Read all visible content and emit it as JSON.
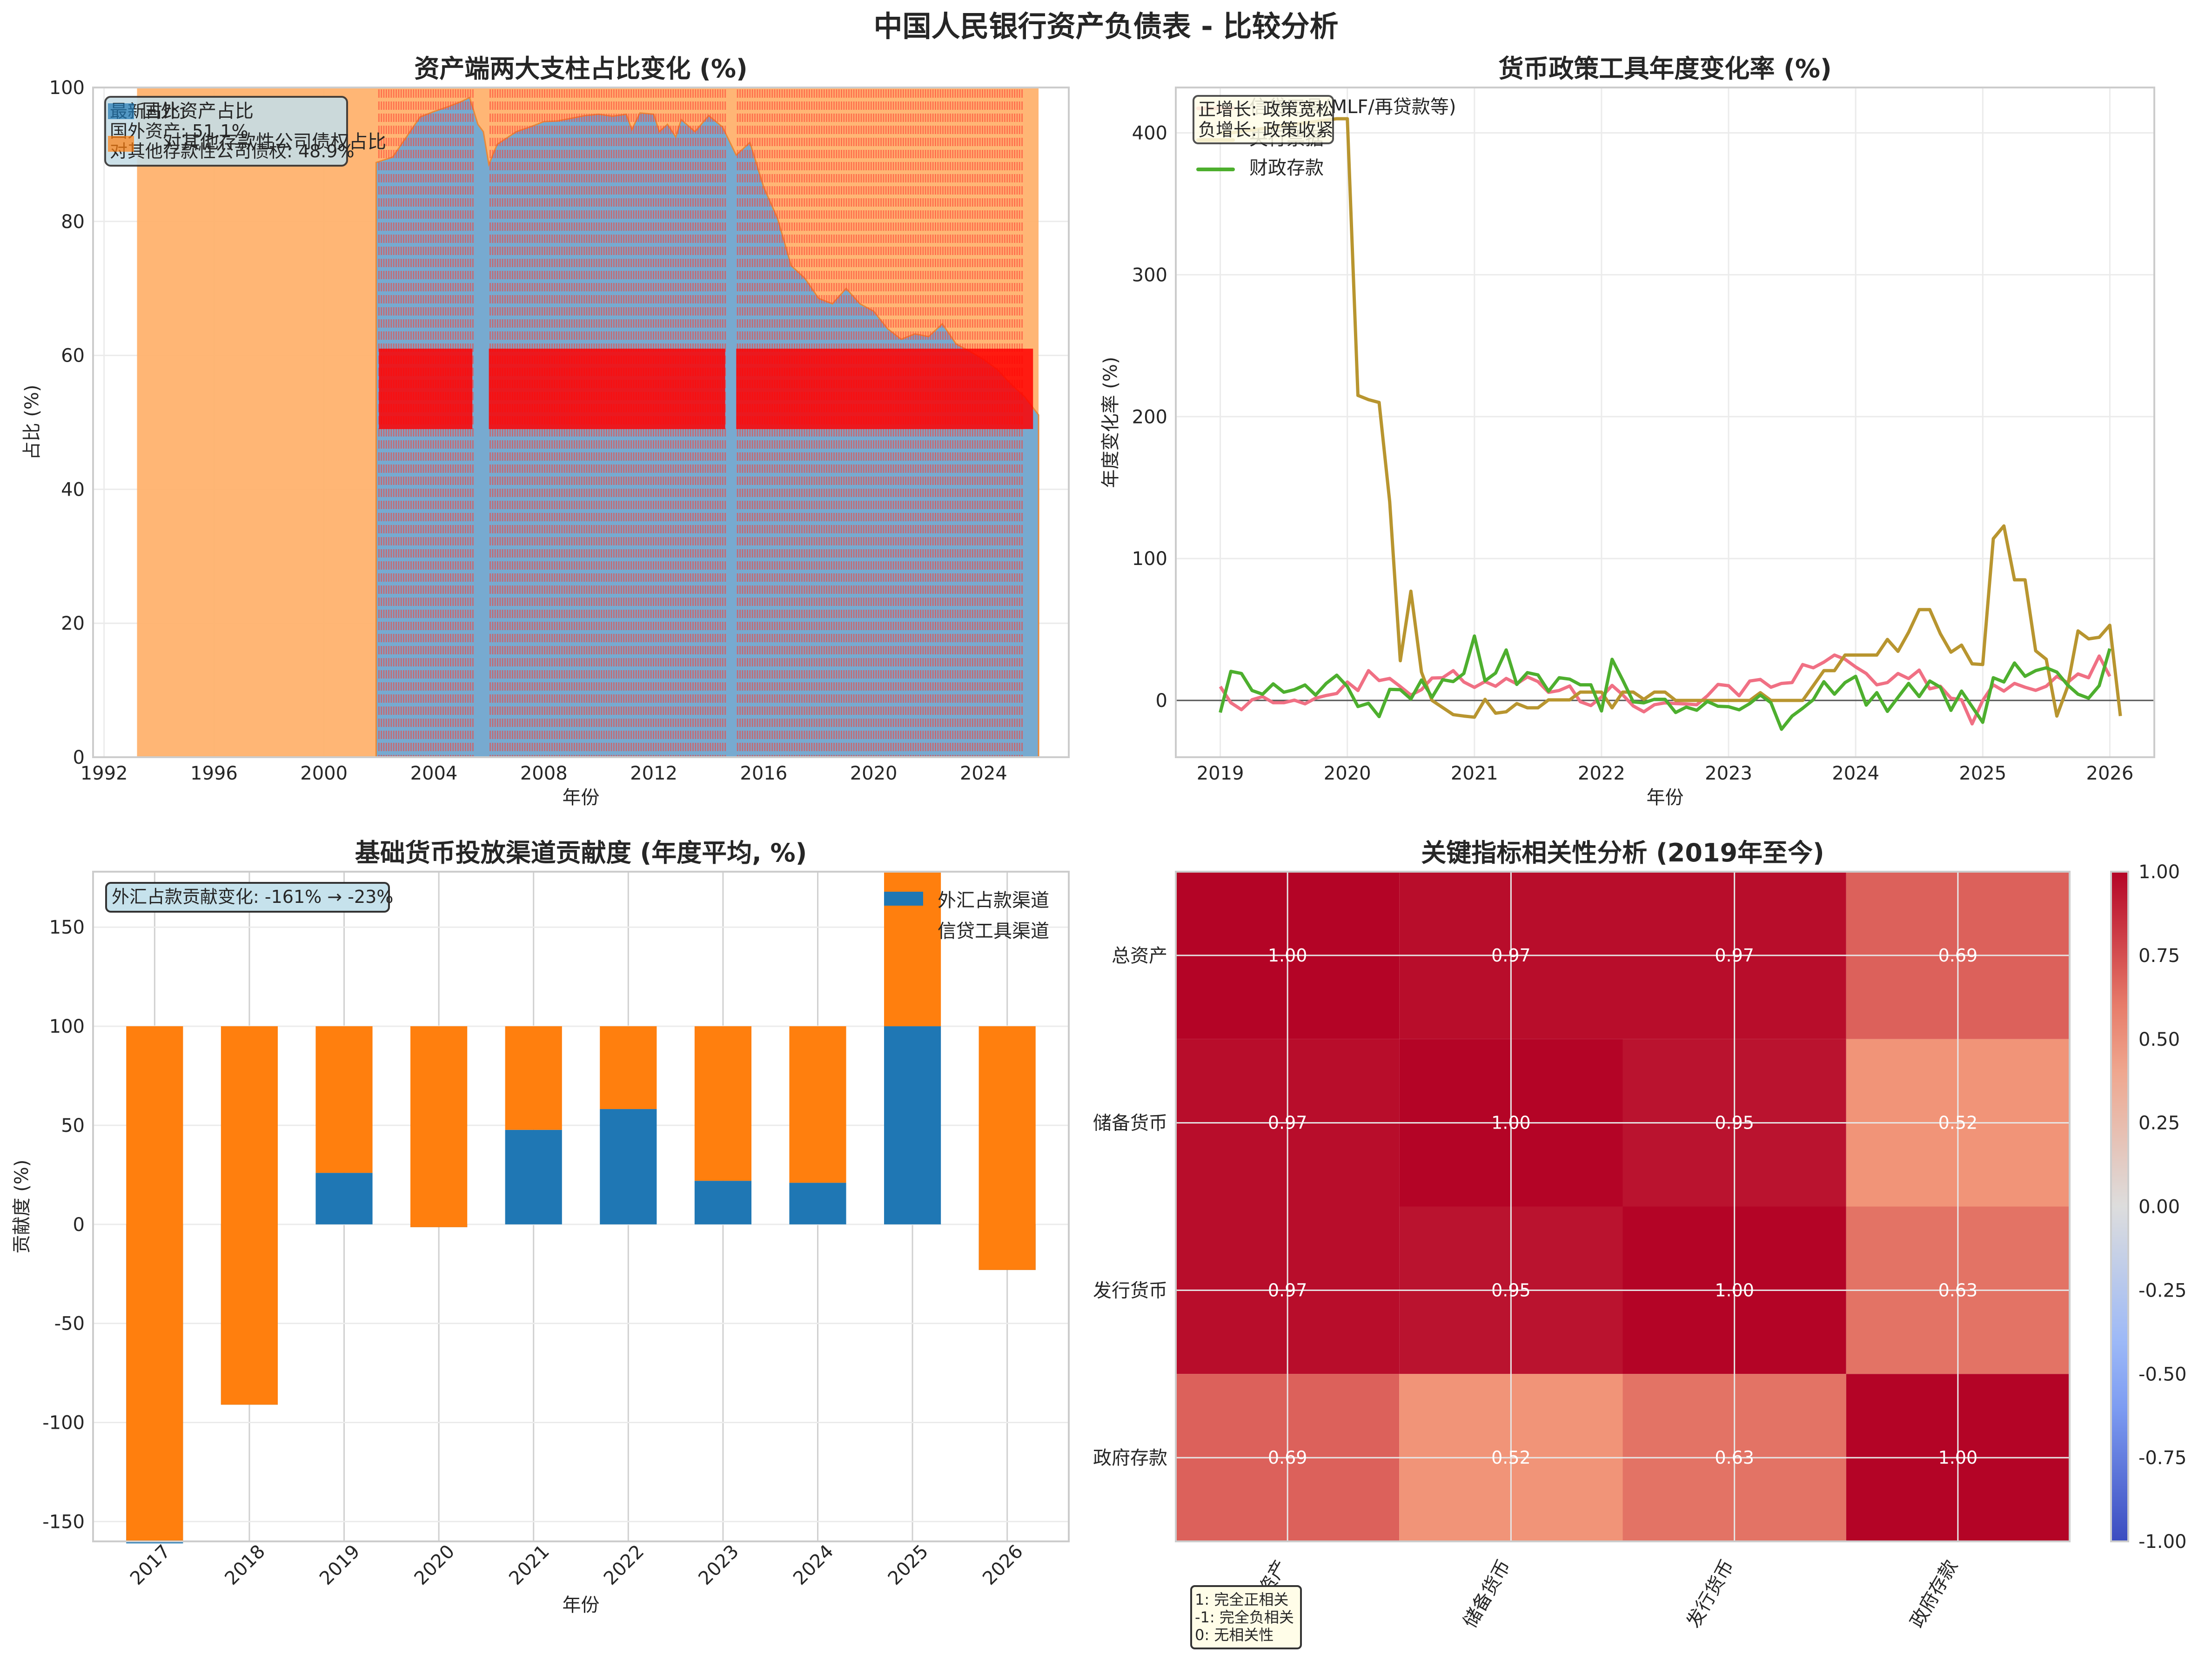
{
  "suptitle": "中国人民银行资产负债表 - 比较分析",
  "chart_data": [
    {
      "id": "asset-share",
      "type": "area",
      "title": "资产端两大支柱占比变化 (%)",
      "xlabel": "年份",
      "ylabel": "占比 (%)",
      "xlim": [
        1991.6,
        2027.1
      ],
      "ylim": [
        0,
        100
      ],
      "xticks": [
        1992,
        1996,
        2000,
        2004,
        2008,
        2012,
        2016,
        2020,
        2024
      ],
      "yticks": [
        0,
        20,
        40,
        60,
        80,
        100
      ],
      "grid": true,
      "x_start": 1993.2,
      "x_end": 2026.0,
      "series": [
        {
          "name": "国外资产占比",
          "color": "#1f77b4",
          "x": [
            2001.9,
            2002.5,
            2003.0,
            2003.5,
            2004.0,
            2004.5,
            2005.0,
            2005.3,
            2005.6,
            2005.8,
            2006.0,
            2006.3,
            2007.0,
            2007.5,
            2008.0,
            2008.5,
            2009.0,
            2009.5,
            2010.0,
            2010.5,
            2011.0,
            2011.2,
            2011.5,
            2012.0,
            2012.2,
            2012.5,
            2012.8,
            2013.0,
            2013.5,
            2014.0,
            2014.5,
            2015.0,
            2015.5,
            2016.0,
            2016.5,
            2017.0,
            2017.5,
            2018.0,
            2018.5,
            2019.0,
            2019.5,
            2020.0,
            2020.5,
            2021.0,
            2021.5,
            2022.0,
            2022.5,
            2023.0,
            2023.5,
            2024.0,
            2024.5,
            2025.0,
            2025.5,
            2026.0
          ],
          "values": [
            88.8,
            89.6,
            92.6,
            95.6,
            96.4,
            97.1,
            97.9,
            98.5,
            94.5,
            93.4,
            88.5,
            91.5,
            93.4,
            94.1,
            94.9,
            95.0,
            95.4,
            95.8,
            96.0,
            95.7,
            96.0,
            93.7,
            96.2,
            96.0,
            93.4,
            94.5,
            92.6,
            95.2,
            93.4,
            95.8,
            94.1,
            89.9,
            91.8,
            85.1,
            80.5,
            73.4,
            71.5,
            68.5,
            67.7,
            70.0,
            67.7,
            66.6,
            64.0,
            62.4,
            63.2,
            62.8,
            64.7,
            61.7,
            60.6,
            59.4,
            57.9,
            55.7,
            53.8,
            51.1
          ]
        },
        {
          "name": "对其他存款性公司债权占比",
          "color": "#ff7f0e",
          "note": "fills remainder to 100%"
        }
      ],
      "annotation": {
        "title": "最新占比:",
        "lines": [
          "国外资产: 51.1%",
          "对其他存款性公司债权: 48.9%"
        ]
      },
      "overlay": "dense red dashed vertical markers with illegible red text labels (2002–2025)"
    },
    {
      "id": "policy-tools",
      "type": "line",
      "title": "货币政策工具年度变化率 (%)",
      "xlabel": "年份",
      "ylabel": "年度变化率 (%)",
      "xlim": [
        2018.65,
        2026.35
      ],
      "ylim": [
        -40,
        432
      ],
      "xticks": [
        2019,
        2020,
        2021,
        2022,
        2023,
        2024,
        2025,
        2026
      ],
      "yticks": [
        0,
        100,
        200,
        300,
        400
      ],
      "grid": true,
      "hline": 0,
      "annotation": [
        "正增长: 政策宽松",
        "负增长: 政策收紧"
      ],
      "legend": "top-left",
      "x_start": 2019.0,
      "x_step": 0.08333,
      "series": [
        {
          "name": "信贷工具(MLF/再贷款等)",
          "color": "#f07084",
          "values": [
            9.8,
            -1.6,
            -6.5,
            0.5,
            2.7,
            -1.6,
            -1.6,
            0.2,
            -2.4,
            1.6,
            3.5,
            4.9,
            13.0,
            7.0,
            21.0,
            14.0,
            15.5,
            9.8,
            3.8,
            7.6,
            15.8,
            16.0,
            21.0,
            13.0,
            9.2,
            13.3,
            10.0,
            15.5,
            11.7,
            16.6,
            13.3,
            5.7,
            7.0,
            10.2,
            -0.9,
            -3.6,
            2.4,
            10.6,
            4.0,
            -3.9,
            -8.0,
            -3.0,
            -1.7,
            -2.2,
            -2.5,
            -3.0,
            3.3,
            11.3,
            10.4,
            3.3,
            13.7,
            14.8,
            9.3,
            12.0,
            12.6,
            25.3,
            23.0,
            27.0,
            32.0,
            29.0,
            23.6,
            19.0,
            11.0,
            12.6,
            19.0,
            15.4,
            21.4,
            8.2,
            10.0,
            1.6,
            0.5,
            -16.5,
            0.0,
            11.0,
            6.6,
            12.0,
            9.3,
            7.1,
            10.0,
            17.0,
            12.6,
            18.7,
            16.0,
            31.3,
            17.0
          ]
        },
        {
          "name": "央行票据",
          "color": "#b8952f",
          "values": [
            400,
            400,
            401,
            402,
            403,
            404,
            405,
            406,
            407,
            408,
            409,
            410,
            410,
            215,
            212,
            210,
            140,
            28,
            77,
            20,
            0,
            -5,
            -10,
            -11,
            -11.8,
            0.8,
            -9.0,
            -8.0,
            -2.2,
            -5.2,
            -5.2,
            0.4,
            0.4,
            0.4,
            5.9,
            5.9,
            5.9,
            -5.2,
            5.9,
            5.9,
            0.8,
            5.9,
            5.9,
            0,
            0,
            0,
            0,
            0,
            0,
            0,
            0,
            5.5,
            0,
            0,
            0,
            0,
            10.4,
            21,
            21,
            32,
            32,
            32,
            32,
            43,
            34.6,
            48,
            64,
            64,
            47,
            34,
            39,
            25.8,
            25.3,
            114,
            123,
            85,
            85,
            35,
            29,
            -11,
            9.3,
            49,
            43.4,
            44.5,
            53,
            -11
          ]
        },
        {
          "name": "财政存款",
          "color": "#4daf2e",
          "values": [
            -8.5,
            20.5,
            19.0,
            7.0,
            4.4,
            11.7,
            5.8,
            7.6,
            10.9,
            3.8,
            12.0,
            17.8,
            9.8,
            -4.3,
            -2.0,
            -11.4,
            7.8,
            7.6,
            1.0,
            14.4,
            2.2,
            14.6,
            13.3,
            19.0,
            45.4,
            13.8,
            19.3,
            35.6,
            11.3,
            19.6,
            18.0,
            6.5,
            16.0,
            15.0,
            11.0,
            11.0,
            -7.4,
            29.0,
            14.4,
            -1.0,
            -1.7,
            0.8,
            0.8,
            -8.5,
            -4.7,
            -6.9,
            -0.7,
            -4.1,
            -4.4,
            -6.6,
            -2.2,
            3.8,
            -1.6,
            -20.3,
            -11.0,
            -5.5,
            0.5,
            13.2,
            4.4,
            12.6,
            17.0,
            -3.3,
            5.5,
            -7.7,
            2.2,
            12.0,
            2.7,
            13.7,
            9.3,
            -7.0,
            6.6,
            -4.4,
            -15.4,
            16.0,
            13.0,
            26.4,
            17.0,
            21.0,
            23.0,
            20.0,
            11.0,
            4.4,
            1.6,
            10.4,
            36.5
          ]
        }
      ]
    },
    {
      "id": "base-money-channels",
      "type": "bar",
      "stacked": true,
      "title": "基础货币投放渠道贡献度 (年度平均, %)",
      "xlabel": "年份",
      "ylabel": "贡献度 (%)",
      "ylim": [
        -160,
        178
      ],
      "yticks": [
        -150,
        -100,
        -50,
        0,
        50,
        100,
        150
      ],
      "grid": true,
      "legend": "top-right",
      "categories": [
        "2017",
        "2018",
        "2019",
        "2020",
        "2021",
        "2022",
        "2023",
        "2024",
        "2025",
        "2026"
      ],
      "series": [
        {
          "name": "外汇占款渠道",
          "color": "#1f77b4",
          "values": [
            -161,
            -91,
            26,
            -1.4,
            47.7,
            58.2,
            22,
            21,
            100,
            -23
          ]
        },
        {
          "name": "信贷工具渠道",
          "color": "#ff7f0e",
          "values": [
            261,
            191,
            74,
            101.4,
            52.3,
            41.8,
            78,
            79,
            80,
            123
          ]
        }
      ],
      "annotation": "外汇占款贡献变化: -161% → -23%"
    },
    {
      "id": "correlation",
      "type": "heatmap",
      "title": "关键指标相关性分析 (2019年至今)",
      "labels": [
        "总资产",
        "储备货币",
        "发行货币",
        "政府存款"
      ],
      "matrix": [
        [
          1.0,
          0.97,
          0.97,
          0.69
        ],
        [
          0.97,
          1.0,
          0.95,
          0.52
        ],
        [
          0.97,
          0.95,
          1.0,
          0.63
        ],
        [
          0.69,
          0.52,
          0.63,
          1.0
        ]
      ],
      "vmin": -1,
      "vmax": 1,
      "colormap": "coolwarm",
      "colorbar_ticks": [
        "1.00",
        "0.75",
        "0.50",
        "0.25",
        "0.00",
        "-0.25",
        "-0.50",
        "-0.75",
        "-1.00"
      ],
      "annotation": [
        "1: 完全正相关",
        "-1: 完全负相关",
        "0: 无相关性"
      ]
    }
  ]
}
